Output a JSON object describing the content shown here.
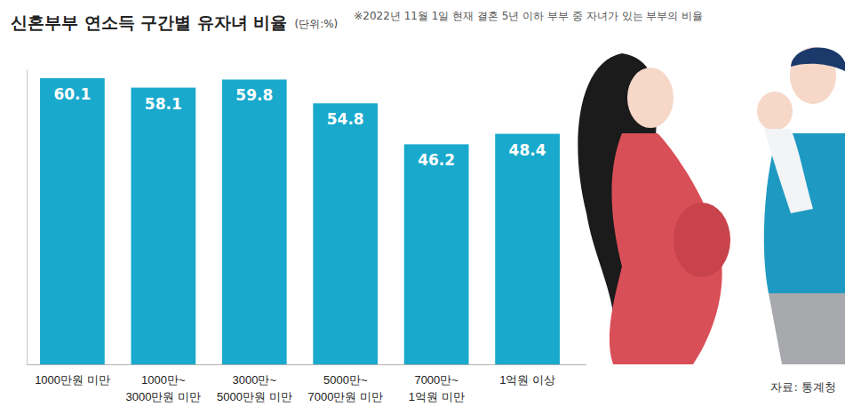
{
  "chart_data": {
    "type": "bar",
    "title": "신혼부부 연소득 구간별 유자녀 비율",
    "subtitle": "(단위:%)",
    "note": "※2022년 11월 1일 현재 결혼 5년 이하 부부 중 자녀가 있는 부부의 비율",
    "source": "자료: 통계청",
    "categories": [
      "1000만원 미만",
      "1000만~3000만원 미만",
      "3000만~5000만원 미만",
      "5000만~7000만원 미만",
      "7000만~1억원 미만",
      "1억원 이상"
    ],
    "values": [
      60.1,
      58.1,
      59.8,
      54.8,
      46.2,
      48.4
    ],
    "color": "#19a9cc",
    "ylim": [
      0,
      62
    ],
    "data_labels": true,
    "tick_labels": "x",
    "grid": false
  }
}
